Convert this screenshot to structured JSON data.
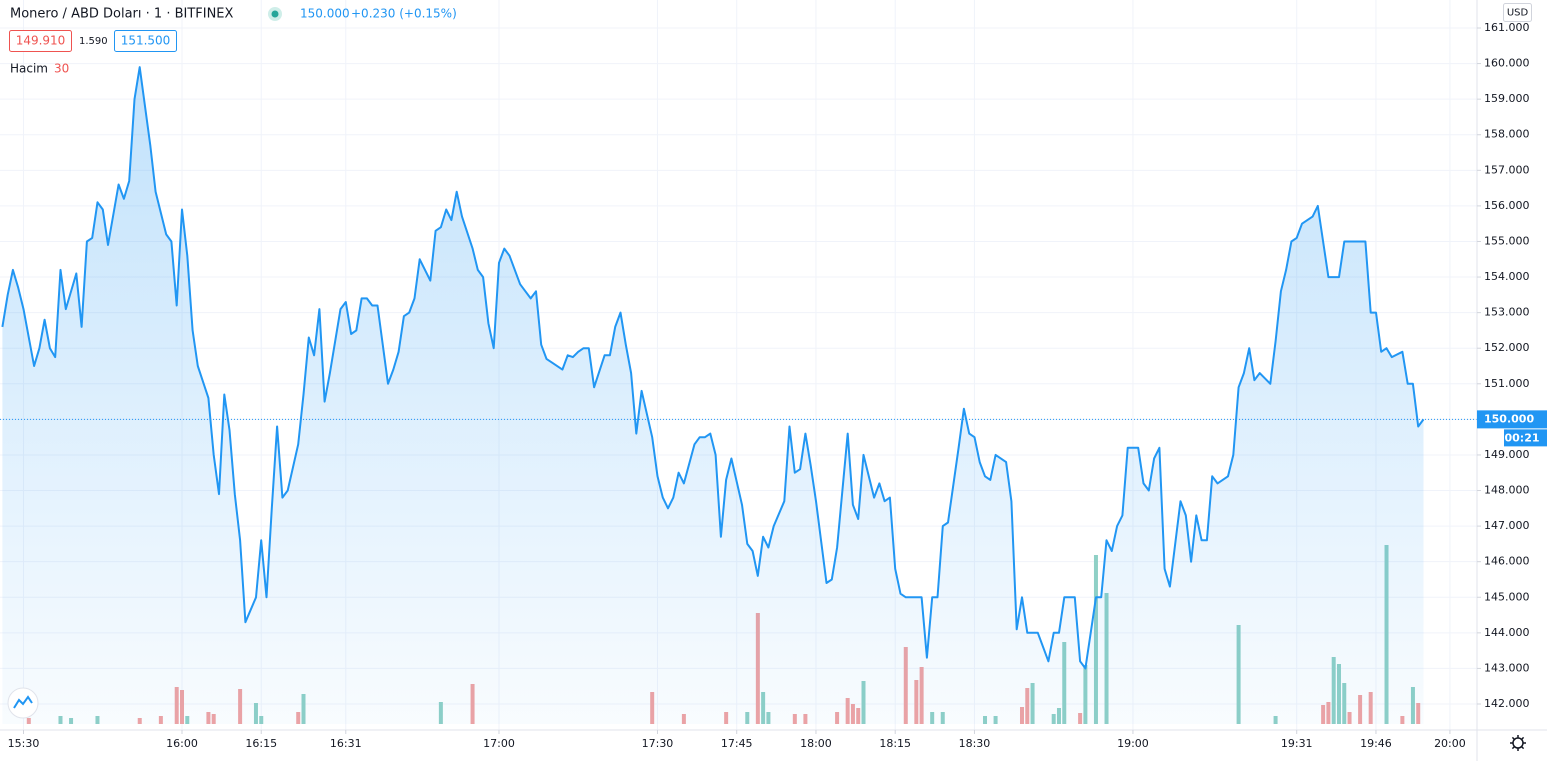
{
  "chart_data": {
    "type": "line",
    "title": "Monero / ABD Doları · 1 · BITFINEX",
    "price": "150.000",
    "change": "+0.230 (+0.15%)",
    "bid": "149.910",
    "spread": "1.590",
    "ask": "151.500",
    "currency": "USD",
    "countdown": "00:21",
    "last_price": {
      "value": 150,
      "label": "150.000"
    },
    "color": "#2196f3",
    "grid": true,
    "x": [
      "15:26",
      "15:27",
      "15:28",
      "15:29",
      "15:30",
      "15:32",
      "15:33",
      "15:34",
      "15:35",
      "15:36",
      "15:37",
      "15:38",
      "15:40",
      "15:41",
      "15:42",
      "15:43",
      "15:44",
      "15:45",
      "15:46",
      "15:48",
      "15:49",
      "15:50",
      "15:51",
      "15:52",
      "15:53",
      "15:54",
      "15:55",
      "15:57",
      "15:58",
      "15:59",
      "16:00",
      "16:01",
      "16:02",
      "16:03",
      "16:05",
      "16:06",
      "16:07",
      "16:08",
      "16:09",
      "16:10",
      "16:11",
      "16:12",
      "16:14",
      "16:15",
      "16:16",
      "16:17",
      "16:18",
      "16:19",
      "16:20",
      "16:22",
      "16:23",
      "16:24",
      "16:25",
      "16:26",
      "16:27",
      "16:28",
      "16:30",
      "16:31",
      "16:32",
      "16:33",
      "16:34",
      "16:35",
      "16:36",
      "16:37",
      "16:39",
      "16:40",
      "16:41",
      "16:42",
      "16:43",
      "16:44",
      "16:45",
      "16:47",
      "16:48",
      "16:49",
      "16:50",
      "16:51",
      "16:52",
      "16:53",
      "16:55",
      "16:56",
      "16:57",
      "16:58",
      "16:59",
      "17:00",
      "17:01",
      "17:02",
      "17:04",
      "17:05",
      "17:06",
      "17:07",
      "17:08",
      "17:09",
      "17:10",
      "17:12",
      "17:13",
      "17:14",
      "17:15",
      "17:16",
      "17:17",
      "17:18",
      "17:20",
      "17:21",
      "17:22",
      "17:23",
      "17:24",
      "17:25",
      "17:26",
      "17:27",
      "17:29",
      "17:30",
      "17:31",
      "17:32",
      "17:33",
      "17:34",
      "17:35",
      "17:37",
      "17:38",
      "17:39",
      "17:40",
      "17:41",
      "17:42",
      "17:43",
      "17:44",
      "17:46",
      "17:47",
      "17:48",
      "17:49",
      "17:50",
      "17:51",
      "17:52",
      "17:54",
      "17:55",
      "17:56",
      "17:57",
      "17:58",
      "17:59",
      "18:00",
      "18:02",
      "18:03",
      "18:04",
      "18:05",
      "18:06",
      "18:07",
      "18:08",
      "18:09",
      "18:11",
      "18:12",
      "18:13",
      "18:14",
      "18:15",
      "18:16",
      "18:17",
      "18:20",
      "18:21",
      "18:22",
      "18:23",
      "18:24",
      "18:25",
      "18:27",
      "18:28",
      "18:29",
      "18:30",
      "18:31",
      "18:32",
      "18:33",
      "18:34",
      "18:36",
      "18:37",
      "18:38",
      "18:39",
      "18:40",
      "18:42",
      "18:44",
      "18:45",
      "18:46",
      "18:47",
      "18:49",
      "18:50",
      "18:51",
      "18:53",
      "18:54",
      "18:55",
      "18:56",
      "18:57",
      "18:58",
      "18:59",
      "19:01",
      "19:02",
      "19:03",
      "19:04",
      "19:05",
      "19:06",
      "19:07",
      "19:09",
      "19:10",
      "19:11",
      "19:12",
      "19:13",
      "19:14",
      "19:15",
      "19:16",
      "19:18",
      "19:19",
      "19:20",
      "19:21",
      "19:22",
      "19:23",
      "19:24",
      "19:26",
      "19:27",
      "19:28",
      "19:29",
      "19:30",
      "19:31",
      "19:32",
      "19:34",
      "19:35",
      "19:36",
      "19:37",
      "19:39",
      "19:40",
      "19:41",
      "19:43",
      "19:44",
      "19:45",
      "19:46",
      "19:47",
      "19:48",
      "19:49",
      "19:51",
      "19:52",
      "19:53",
      "19:54",
      "19:55"
    ],
    "values": [
      152.6,
      153.5,
      154.2,
      153.7,
      153.1,
      151.5,
      152.0,
      152.8,
      152.0,
      151.75,
      154.2,
      153.1,
      154.1,
      152.6,
      155.0,
      155.1,
      156.1,
      155.9,
      154.9,
      156.6,
      156.2,
      156.7,
      159.0,
      159.9,
      158.8,
      157.7,
      156.4,
      155.2,
      155.0,
      153.2,
      155.9,
      154.6,
      152.5,
      151.5,
      150.6,
      149.0,
      147.9,
      150.7,
      149.7,
      147.9,
      146.6,
      144.3,
      145.0,
      146.6,
      145.0,
      147.5,
      149.8,
      147.8,
      148.0,
      149.3,
      150.7,
      152.3,
      151.8,
      153.1,
      150.5,
      151.3,
      153.1,
      153.3,
      152.4,
      152.5,
      153.4,
      153.4,
      153.2,
      153.2,
      151.0,
      151.4,
      151.9,
      152.9,
      153.0,
      153.4,
      154.5,
      153.9,
      155.3,
      155.4,
      155.9,
      155.6,
      156.4,
      155.7,
      154.8,
      154.2,
      154.0,
      152.7,
      152.0,
      154.4,
      154.8,
      154.6,
      153.8,
      153.6,
      153.4,
      153.6,
      152.1,
      151.7,
      151.6,
      151.4,
      151.8,
      151.75,
      151.9,
      152.0,
      152.0,
      150.9,
      151.8,
      151.8,
      152.6,
      153.0,
      152.1,
      151.3,
      149.6,
      150.8,
      149.5,
      148.4,
      147.8,
      147.5,
      147.8,
      148.5,
      148.2,
      149.3,
      149.5,
      149.5,
      149.6,
      149.0,
      146.7,
      148.3,
      148.9,
      147.6,
      146.5,
      146.3,
      145.6,
      146.7,
      146.4,
      147.0,
      147.7,
      149.8,
      148.5,
      148.6,
      149.6,
      148.7,
      147.7,
      145.4,
      145.5,
      146.4,
      148.0,
      149.6,
      147.6,
      147.2,
      149.0,
      147.8,
      148.2,
      147.7,
      147.8,
      145.8,
      145.1,
      145.0,
      145.0,
      143.3,
      145.0,
      145.0,
      147.0,
      147.1,
      149.2,
      150.3,
      149.6,
      149.5,
      148.8,
      148.4,
      148.3,
      149.0,
      148.8,
      147.7,
      144.1,
      145.0,
      144.0,
      144.0,
      143.2,
      144.0,
      144.0,
      145.0,
      145.0,
      143.2,
      143.0,
      145.0,
      145.0,
      146.6,
      146.3,
      147.0,
      147.3,
      149.2,
      149.2,
      148.2,
      148.0,
      148.9,
      149.2,
      145.8,
      145.3,
      147.7,
      147.3,
      146.0,
      147.3,
      146.6,
      146.6,
      148.4,
      148.2,
      148.4,
      149.0,
      150.9,
      151.3,
      152.0,
      151.1,
      151.3,
      151.0,
      152.2,
      153.6,
      154.2,
      155.0,
      155.1,
      155.5,
      155.7,
      156.0,
      155.0,
      154.0,
      154.0,
      155.0,
      155.0,
      155.0,
      155.0,
      153.0,
      153.0,
      151.9,
      152.0,
      151.75,
      151.9,
      151.0,
      151.0,
      149.8,
      150.0
    ],
    "ylim": [
      142,
      161
    ],
    "yticks": [
      {
        "value": 142,
        "label": "142.000"
      },
      {
        "value": 143,
        "label": "143.000"
      },
      {
        "value": 144,
        "label": "144.000"
      },
      {
        "value": 145,
        "label": "145.000"
      },
      {
        "value": 146,
        "label": "146.000"
      },
      {
        "value": 147,
        "label": "147.000"
      },
      {
        "value": 148,
        "label": "148.000"
      },
      {
        "value": 149,
        "label": "149.000"
      },
      {
        "value": 150,
        "label": "150.000"
      },
      {
        "value": 151,
        "label": "151.000"
      },
      {
        "value": 152,
        "label": "152.000"
      },
      {
        "value": 153,
        "label": "153.000"
      },
      {
        "value": 154,
        "label": "154.000"
      },
      {
        "value": 155,
        "label": "155.000"
      },
      {
        "value": 156,
        "label": "156.000"
      },
      {
        "value": 157,
        "label": "157.000"
      },
      {
        "value": 158,
        "label": "158.000"
      },
      {
        "value": 159,
        "label": "159.000"
      },
      {
        "value": 160,
        "label": "160.000"
      },
      {
        "value": 161,
        "label": "161.000"
      }
    ],
    "xticks": [
      "15:30",
      "16:00",
      "16:15",
      "16:31",
      "17:00",
      "17:30",
      "17:45",
      "18:00",
      "18:15",
      "18:30",
      "19:00",
      "19:31",
      "19:46",
      "20:00"
    ],
    "volume": {
      "label": "Hacim",
      "value": 30,
      "vlim": [
        0,
        200
      ],
      "down": {
        "color": "#f0a3a3",
        "x": [
          "15:31",
          "15:52",
          "15:56",
          "15:59",
          "16:00",
          "16:05",
          "16:06",
          "16:11",
          "16:22",
          "16:55",
          "17:29",
          "17:35",
          "17:43",
          "17:49",
          "17:56",
          "17:58",
          "18:04",
          "18:06",
          "18:07",
          "18:08",
          "18:17",
          "18:19",
          "18:20",
          "18:39",
          "18:40",
          "18:50",
          "19:36",
          "19:37",
          "19:41",
          "19:43",
          "19:45",
          "19:51",
          "19:54"
        ],
        "values": [
          6,
          6,
          8,
          37,
          34,
          12,
          10,
          35,
          12,
          40,
          32,
          10,
          12,
          111,
          10,
          10,
          12,
          26,
          20,
          16,
          77,
          44,
          57,
          17,
          36,
          11,
          19,
          22,
          12,
          29,
          32,
          8,
          21
        ]
      },
      "up": {
        "color": "#8fd0c6",
        "x": [
          "15:37",
          "15:39",
          "15:44",
          "16:01",
          "16:14",
          "16:15",
          "16:23",
          "16:49",
          "17:47",
          "17:50",
          "17:51",
          "18:09",
          "18:22",
          "18:24",
          "18:32",
          "18:34",
          "18:41",
          "18:45",
          "18:46",
          "18:47",
          "18:51",
          "18:53",
          "18:55",
          "19:20",
          "19:27",
          "19:38",
          "19:39",
          "19:40",
          "19:48",
          "19:53"
        ],
        "values": [
          8,
          6,
          8,
          8,
          21,
          8,
          30,
          22,
          12,
          32,
          12,
          43,
          12,
          12,
          8,
          8,
          41,
          10,
          16,
          82,
          59,
          169,
          131,
          99,
          8,
          67,
          60,
          41,
          179,
          37
        ]
      }
    }
  }
}
